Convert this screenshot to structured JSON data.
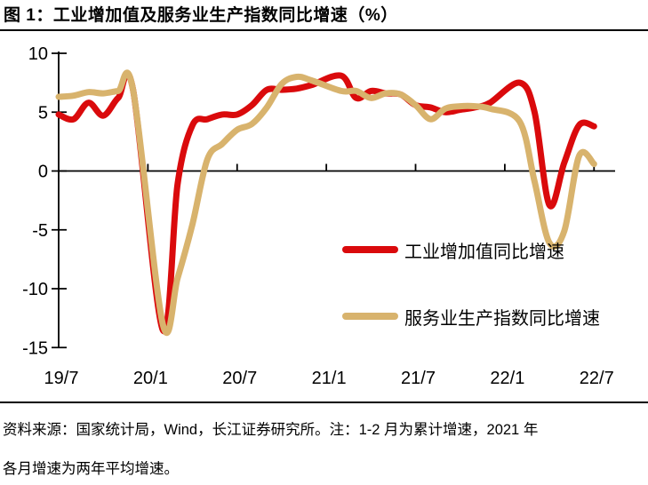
{
  "title": "图 1：工业增加值及服务业生产指数同比增速（%）",
  "footer": {
    "lines": [
      "资料来源：国家统计局，Wind，长江证券研究所。注：1-2 月为累计增速，2021 年",
      "各月增速为两年平均增速。"
    ]
  },
  "chart_data": {
    "type": "line",
    "title": "工业增加值及服务业生产指数同比增速（%）",
    "x": [
      "19/7",
      "19/8",
      "19/9",
      "19/10",
      "19/11",
      "19/12",
      "20/1",
      "20/2",
      "20/3",
      "20/4",
      "20/5",
      "20/6",
      "20/7",
      "20/8",
      "20/9",
      "20/10",
      "20/11",
      "20/12",
      "21/1",
      "21/2",
      "21/3",
      "21/4",
      "21/5",
      "21/6",
      "21/7",
      "21/8",
      "21/9",
      "21/10",
      "21/11",
      "21/12",
      "22/1",
      "22/2",
      "22/3",
      "22/4",
      "22/5",
      "22/6",
      "22/7"
    ],
    "x_tick_labels": [
      "19/7",
      "20/1",
      "20/7",
      "21/1",
      "21/7",
      "22/1",
      "22/7"
    ],
    "x_tick_indices": [
      0,
      6,
      12,
      18,
      24,
      30,
      36
    ],
    "y_ticks": [
      10,
      5,
      0,
      -5,
      -10,
      -15
    ],
    "y_tick_labels": [
      "10",
      "5",
      "0",
      "-5",
      "-10",
      "-15"
    ],
    "ylim": [
      -15,
      10
    ],
    "grid": false,
    "legend_position": "inside-bottom-right",
    "series": [
      {
        "name": "工业增加值同比增速",
        "color": "#da0a0c",
        "values": [
          4.8,
          4.4,
          5.8,
          4.7,
          6.2,
          6.9,
          null,
          -13.5,
          -1.1,
          3.9,
          4.4,
          4.8,
          4.8,
          5.6,
          6.9,
          6.9,
          7.0,
          7.3,
          null,
          8.1,
          6.2,
          6.8,
          6.6,
          6.5,
          5.6,
          5.4,
          5.0,
          5.2,
          5.4,
          5.8,
          null,
          7.5,
          5.0,
          -2.9,
          0.7,
          3.9,
          3.8
        ]
      },
      {
        "name": "服务业生产指数同比增速",
        "color": "#d8b36d",
        "values": [
          6.3,
          6.4,
          6.7,
          6.6,
          6.8,
          6.9,
          null,
          -13.0,
          -9.1,
          -4.5,
          1.0,
          2.3,
          3.5,
          4.0,
          5.4,
          7.4,
          8.0,
          7.7,
          null,
          6.8,
          6.8,
          6.2,
          6.6,
          6.5,
          5.6,
          4.4,
          5.3,
          5.5,
          5.5,
          5.3,
          null,
          4.2,
          -0.9,
          -6.1,
          -5.1,
          1.3,
          0.6
        ]
      }
    ]
  }
}
